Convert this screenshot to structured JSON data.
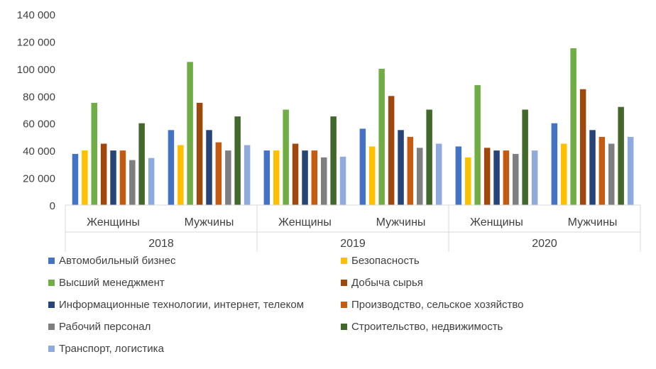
{
  "chart_data": {
    "type": "bar",
    "title": "",
    "xlabel": "",
    "ylabel": "",
    "ylim": [
      0,
      140000
    ],
    "y_ticks": [
      0,
      20000,
      40000,
      60000,
      80000,
      100000,
      120000,
      140000
    ],
    "y_tick_labels": [
      "0",
      "20 000",
      "40 000",
      "60 000",
      "80 000",
      "100 000",
      "120 000",
      "140 000"
    ],
    "grid": false,
    "legend_position": "bottom",
    "groups": [
      {
        "label": "2018",
        "categories": [
          "Женщины",
          "Мужчины"
        ]
      },
      {
        "label": "2019",
        "categories": [
          "Женщины",
          "Мужчины"
        ]
      },
      {
        "label": "2020",
        "categories": [
          "Женщины",
          "Мужчины"
        ]
      }
    ],
    "categories": [
      "2018 Женщины",
      "2018 Мужчины",
      "2019 Женщины",
      "2019 Мужчины",
      "2020 Женщины",
      "2020 Мужчины"
    ],
    "series": [
      {
        "name": "Автомобильный бизнес",
        "color": "#4472c4",
        "values": [
          37500,
          55000,
          40000,
          56000,
          43000,
          60000
        ]
      },
      {
        "name": "Безопасность",
        "color": "#ffc000",
        "values": [
          40000,
          44000,
          40000,
          43000,
          35000,
          45000
        ]
      },
      {
        "name": "Высший менеджмент",
        "color": "#70ad47",
        "values": [
          75000,
          105000,
          70000,
          100000,
          88000,
          115000
        ]
      },
      {
        "name": "Добыча сырья",
        "color": "#9e480e",
        "values": [
          45000,
          75000,
          45000,
          80000,
          42000,
          85000
        ]
      },
      {
        "name": "Информационные технологии, интернет, телеком",
        "color": "#264478",
        "values": [
          40000,
          55000,
          40000,
          55000,
          40000,
          55000
        ]
      },
      {
        "name": "Производство, сельское хозяйство",
        "color": "#c55a11",
        "values": [
          40000,
          46000,
          40000,
          50000,
          40000,
          50000
        ]
      },
      {
        "name": "Рабочий персонал",
        "color": "#7f7f7f",
        "values": [
          33000,
          40000,
          35000,
          42000,
          37500,
          45000
        ]
      },
      {
        "name": "Строительство, недвижимость",
        "color": "#43682b",
        "values": [
          60000,
          65000,
          65000,
          70000,
          70000,
          72000
        ]
      },
      {
        "name": "Транспорт, логистика",
        "color": "#8faadc",
        "values": [
          34500,
          44000,
          35500,
          45000,
          40000,
          50000
        ]
      }
    ]
  }
}
